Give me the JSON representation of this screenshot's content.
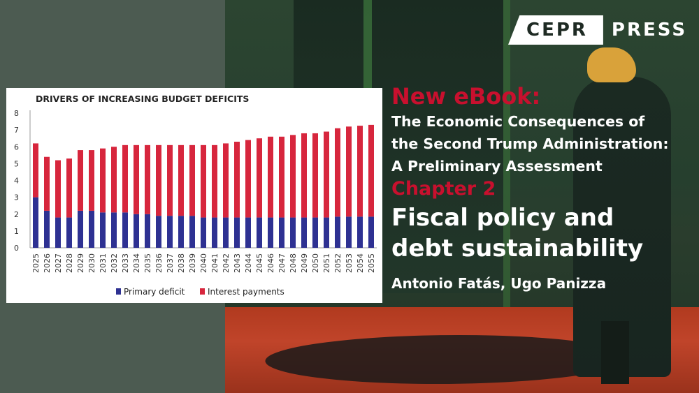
{
  "logo": {
    "box_text": "CEPR",
    "side_text": "PRESS"
  },
  "announcement": "New eBook:",
  "book_title_lines": [
    "The Economic Consequences of",
    "the Second Trump Administration:",
    "A Preliminary Assessment"
  ],
  "chapter_label": "Chapter 2",
  "chapter_title_lines": [
    "Fiscal policy and",
    "debt sustainability"
  ],
  "authors": "Antonio Fatás, Ugo Panizza",
  "colors": {
    "accent_red": "#c8102e",
    "primary_blue": "#2e3192",
    "interest_red": "#d7263d"
  },
  "chart_data": {
    "type": "bar",
    "stacked": true,
    "title": "DRIVERS OF INCREASING BUDGET DEFICITS",
    "categories": [
      "2025",
      "2026",
      "2027",
      "2028",
      "2029",
      "2030",
      "2031",
      "2032",
      "2033",
      "2034",
      "2035",
      "2036",
      "2037",
      "2038",
      "2039",
      "2040",
      "2041",
      "2042",
      "2043",
      "2044",
      "2045",
      "2046",
      "2047",
      "2048",
      "2049",
      "2050",
      "2051",
      "2052",
      "2053",
      "2054",
      "2055"
    ],
    "series": [
      {
        "name": "Primary deficit",
        "color": "#2e3192",
        "values": [
          3.0,
          2.2,
          1.8,
          1.8,
          2.2,
          2.2,
          2.1,
          2.1,
          2.1,
          2.0,
          2.0,
          1.9,
          1.9,
          1.9,
          1.9,
          1.8,
          1.8,
          1.8,
          1.8,
          1.8,
          1.8,
          1.8,
          1.8,
          1.8,
          1.8,
          1.8,
          1.8,
          1.85,
          1.85,
          1.85,
          1.85
        ]
      },
      {
        "name": "Interest payments",
        "color": "#d7263d",
        "values": [
          3.2,
          3.2,
          3.4,
          3.5,
          3.6,
          3.6,
          3.8,
          3.9,
          4.0,
          4.1,
          4.1,
          4.2,
          4.2,
          4.2,
          4.2,
          4.3,
          4.3,
          4.4,
          4.5,
          4.6,
          4.7,
          4.8,
          4.8,
          4.9,
          5.0,
          5.0,
          5.1,
          5.25,
          5.35,
          5.4,
          5.45
        ]
      }
    ],
    "y_ticks": [
      "0",
      "1",
      "2",
      "3",
      "4",
      "5",
      "6",
      "7",
      "8"
    ],
    "ylim": [
      0,
      8
    ],
    "legend_position": "bottom",
    "grid": false
  }
}
